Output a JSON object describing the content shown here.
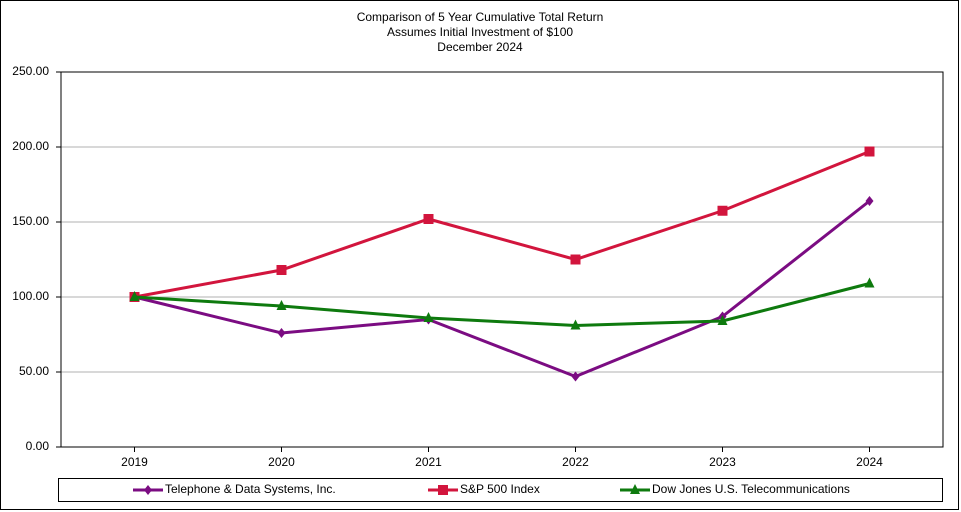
{
  "chart_data": {
    "type": "line",
    "title": [
      "Comparison of 5 Year Cumulative Total Return",
      "Assumes Initial Investment of $100",
      "December 2024"
    ],
    "categories": [
      "2019",
      "2020",
      "2021",
      "2022",
      "2023",
      "2024"
    ],
    "series": [
      {
        "name": "Telephone & Data Systems, Inc.",
        "color": "#7b0c82",
        "marker": "diamond",
        "values": [
          100,
          76,
          85,
          47,
          87,
          164
        ]
      },
      {
        "name": "S&P 500 Index",
        "color": "#d2153d",
        "marker": "square",
        "values": [
          100,
          118,
          152,
          125,
          157.5,
          197
        ]
      },
      {
        "name": "Dow Jones U.S. Telecommunications",
        "color": "#0e7a0e",
        "marker": "triangle",
        "values": [
          100,
          94,
          86,
          81,
          84,
          109
        ]
      }
    ],
    "ylim": [
      0,
      250
    ],
    "yticks": [
      {
        "value": 0,
        "label": "0.00"
      },
      {
        "value": 50,
        "label": "50.00"
      },
      {
        "value": 100,
        "label": "100.00"
      },
      {
        "value": 150,
        "label": "150.00"
      },
      {
        "value": 200,
        "label": "200.00"
      },
      {
        "value": 250,
        "label": "250.00"
      }
    ],
    "grid": true,
    "legend": "bottom"
  }
}
